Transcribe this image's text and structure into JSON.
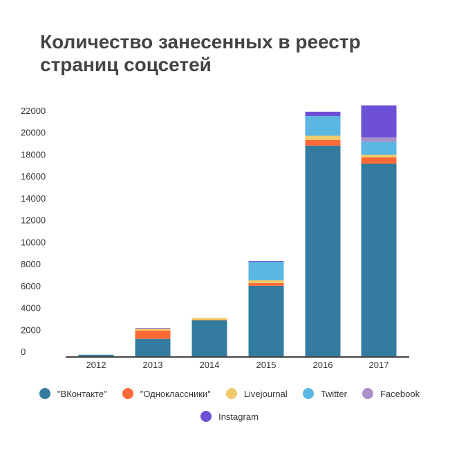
{
  "chart_data": {
    "type": "bar",
    "stacked": true,
    "title": "Количество занесенных в реестр страниц соцсетей",
    "categories": [
      "2012",
      "2013",
      "2014",
      "2015",
      "2016",
      "2017"
    ],
    "series": [
      {
        "name": "\"ВКонтакте\"",
        "color": "#337ca0",
        "values": [
          200,
          1660,
          3340,
          6500,
          19300,
          17650
        ]
      },
      {
        "name": "\"Одноклассники\"",
        "color": "#fd6a37",
        "values": [
          0,
          760,
          30,
          250,
          500,
          570
        ]
      },
      {
        "name": "Livejournal",
        "color": "#f2ca6b",
        "values": [
          0,
          170,
          190,
          250,
          400,
          250
        ]
      },
      {
        "name": "Twitter",
        "color": "#5bb6e2",
        "values": [
          0,
          0,
          0,
          1700,
          1790,
          1180
        ]
      },
      {
        "name": "Facebook",
        "color": "#a990c9",
        "values": [
          0,
          30,
          0,
          0,
          0,
          400
        ]
      },
      {
        "name": "Instagram",
        "color": "#6d50d6",
        "values": [
          0,
          30,
          0,
          60,
          400,
          2920
        ]
      }
    ],
    "yticks": [
      0,
      2000,
      4000,
      6000,
      8000,
      10000,
      12000,
      14000,
      16000,
      18000,
      20000,
      22000
    ],
    "ylim": [
      0,
      23000
    ],
    "grid": false,
    "legend": "bottom"
  }
}
